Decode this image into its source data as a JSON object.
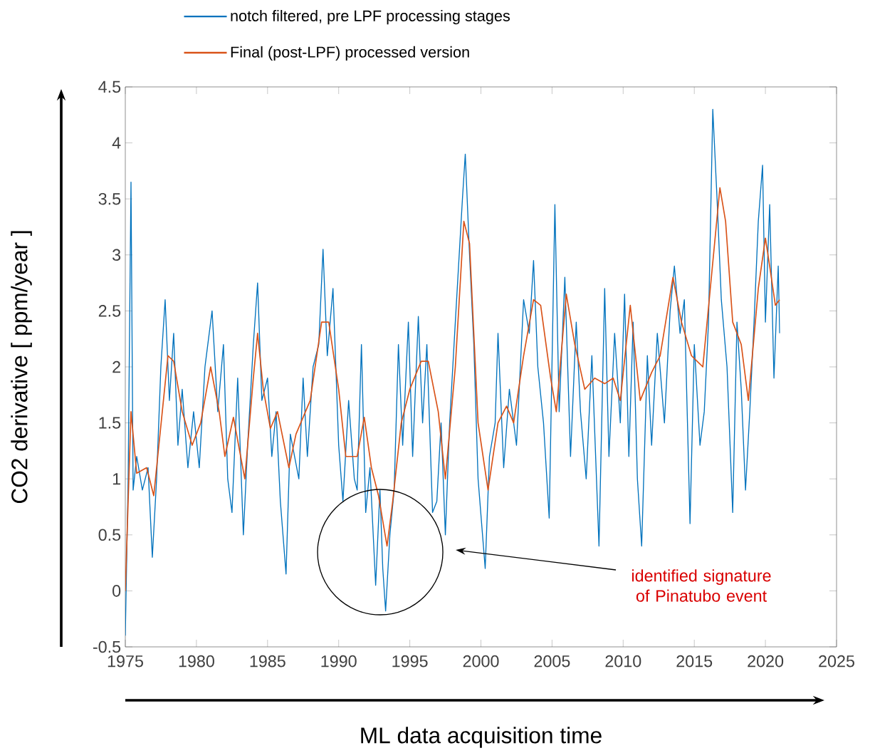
{
  "chart_data": {
    "type": "line",
    "xlabel": "ML data acquisition time",
    "ylabel": "CO2 derivative [ ppm/year ]",
    "xlim": [
      1975,
      2025
    ],
    "ylim": [
      -0.5,
      4.5
    ],
    "xticks": [
      1975,
      1980,
      1985,
      1990,
      1995,
      2000,
      2005,
      2010,
      2015,
      2020,
      2025
    ],
    "yticks": [
      -0.5,
      0,
      0.5,
      1,
      1.5,
      2,
      2.5,
      3,
      3.5,
      4,
      4.5
    ],
    "legend": "top",
    "grid": false,
    "annotations": [
      "identified signature of Pinatubo event"
    ],
    "series": [
      {
        "name": "notch filtered, pre LPF processing stages",
        "color": "#0072bd",
        "x": [
          1975.0,
          1975.2,
          1975.4,
          1975.55,
          1975.8,
          1976.2,
          1976.6,
          1976.9,
          1977.2,
          1977.5,
          1977.8,
          1978.1,
          1978.4,
          1978.7,
          1979.0,
          1979.4,
          1979.8,
          1980.2,
          1980.6,
          1981.1,
          1981.5,
          1981.9,
          1982.2,
          1982.5,
          1982.9,
          1983.3,
          1983.6,
          1984.0,
          1984.3,
          1984.6,
          1985.0,
          1985.3,
          1985.6,
          1985.9,
          1986.3,
          1986.6,
          1987.2,
          1987.5,
          1987.8,
          1988.2,
          1988.6,
          1988.9,
          1989.2,
          1989.6,
          1990.0,
          1990.3,
          1990.7,
          1991.1,
          1991.3,
          1991.6,
          1991.9,
          1992.2,
          1992.6,
          1992.9,
          1993.1,
          1993.3,
          1993.6,
          1993.9,
          1994.2,
          1994.5,
          1994.9,
          1995.2,
          1995.6,
          1995.9,
          1996.2,
          1996.6,
          1996.9,
          1997.2,
          1997.5,
          1997.8,
          1998.2,
          1998.7,
          1998.9,
          1999.2,
          1999.5,
          1999.8,
          2000.3,
          2000.6,
          2001.0,
          2001.2,
          2001.6,
          2002.0,
          2002.5,
          2003.0,
          2003.4,
          2003.7,
          2004.0,
          2004.4,
          2004.8,
          2005.2,
          2005.5,
          2005.9,
          2006.3,
          2006.7,
          2007.0,
          2007.4,
          2007.8,
          2008.3,
          2008.7,
          2009.0,
          2009.4,
          2009.8,
          2010.1,
          2010.4,
          2010.7,
          2011.0,
          2011.3,
          2011.7,
          2012.0,
          2012.4,
          2012.9,
          2013.3,
          2013.6,
          2014.0,
          2014.3,
          2014.7,
          2015.0,
          2015.4,
          2015.7,
          2016.0,
          2016.3,
          2016.6,
          2016.9,
          2017.3,
          2017.7,
          2018.0,
          2018.3,
          2018.6,
          2018.9,
          2019.2,
          2019.5,
          2019.8,
          2020.0,
          2020.3,
          2020.6,
          2020.9,
          2021.0
        ],
        "values": [
          -0.4,
          1.0,
          3.65,
          0.9,
          1.2,
          0.9,
          1.1,
          0.3,
          1.0,
          2.0,
          2.6,
          1.7,
          2.3,
          1.3,
          1.8,
          1.1,
          1.6,
          1.1,
          2.0,
          2.5,
          1.6,
          2.2,
          1.0,
          0.7,
          1.9,
          0.5,
          1.3,
          2.2,
          2.75,
          1.7,
          1.9,
          1.2,
          1.6,
          0.8,
          0.15,
          1.4,
          1.0,
          1.9,
          1.2,
          2.0,
          2.2,
          3.05,
          2.1,
          2.7,
          1.3,
          0.8,
          1.7,
          1.0,
          0.9,
          2.2,
          0.7,
          1.1,
          0.05,
          0.9,
          0.2,
          -0.18,
          0.5,
          0.9,
          2.2,
          1.3,
          2.4,
          1.2,
          2.45,
          1.5,
          2.2,
          0.7,
          0.8,
          1.5,
          0.5,
          1.5,
          2.4,
          3.5,
          3.9,
          3.0,
          2.2,
          1.0,
          0.2,
          1.2,
          1.5,
          2.3,
          1.1,
          1.8,
          1.3,
          2.6,
          2.3,
          2.95,
          2.0,
          1.5,
          0.65,
          3.45,
          1.6,
          2.8,
          1.2,
          2.4,
          1.6,
          1.0,
          2.1,
          0.4,
          2.7,
          1.2,
          2.3,
          1.5,
          2.65,
          1.2,
          2.4,
          1.0,
          0.4,
          2.1,
          1.3,
          2.3,
          1.5,
          2.5,
          2.9,
          2.3,
          2.6,
          0.6,
          2.2,
          1.3,
          1.6,
          2.4,
          4.3,
          3.5,
          2.6,
          2.0,
          0.7,
          2.4,
          1.8,
          0.9,
          1.6,
          2.4,
          3.3,
          3.8,
          2.4,
          3.45,
          1.9,
          2.9,
          2.3
        ]
      },
      {
        "name": "Final (post-LPF) processed version",
        "color": "#d95319",
        "x": [
          1975.0,
          1975.4,
          1975.8,
          1976.5,
          1977.0,
          1977.6,
          1978.0,
          1978.4,
          1979.0,
          1979.7,
          1980.3,
          1981.0,
          1981.6,
          1982.0,
          1982.6,
          1983.4,
          1984.0,
          1984.3,
          1984.7,
          1985.2,
          1985.7,
          1986.5,
          1987.0,
          1988.0,
          1988.8,
          1989.3,
          1990.0,
          1990.5,
          1991.3,
          1991.8,
          1992.3,
          1992.8,
          1993.4,
          1993.8,
          1994.4,
          1995.0,
          1995.8,
          1996.3,
          1997.0,
          1997.5,
          1998.2,
          1998.8,
          1999.2,
          1999.8,
          2000.5,
          2001.2,
          2001.8,
          2002.3,
          2003.0,
          2003.7,
          2004.2,
          2004.9,
          2005.3,
          2006.0,
          2006.6,
          2007.3,
          2008.0,
          2008.7,
          2009.3,
          2009.8,
          2010.5,
          2011.2,
          2012.0,
          2012.6,
          2013.5,
          2014.1,
          2014.8,
          2015.6,
          2016.2,
          2016.8,
          2017.2,
          2017.7,
          2018.3,
          2018.8,
          2019.5,
          2020.0,
          2020.3,
          2020.7,
          2021.0
        ],
        "values": [
          0.0,
          1.6,
          1.05,
          1.1,
          0.85,
          1.6,
          2.1,
          2.05,
          1.6,
          1.3,
          1.5,
          2.0,
          1.6,
          1.2,
          1.55,
          1.0,
          1.9,
          2.3,
          1.8,
          1.45,
          1.6,
          1.1,
          1.4,
          1.7,
          2.4,
          2.4,
          1.8,
          1.2,
          1.2,
          1.55,
          1.1,
          0.85,
          0.4,
          0.8,
          1.5,
          1.8,
          2.05,
          2.05,
          1.6,
          1.0,
          2.0,
          3.3,
          3.1,
          1.5,
          0.9,
          1.5,
          1.65,
          1.5,
          2.1,
          2.6,
          2.55,
          1.9,
          1.6,
          2.65,
          2.2,
          1.8,
          1.9,
          1.85,
          1.9,
          1.7,
          2.55,
          1.7,
          1.95,
          2.1,
          2.8,
          2.4,
          2.1,
          2.0,
          2.8,
          3.6,
          3.3,
          2.4,
          2.2,
          1.7,
          2.7,
          3.15,
          2.9,
          2.55,
          2.6
        ]
      }
    ]
  }
}
